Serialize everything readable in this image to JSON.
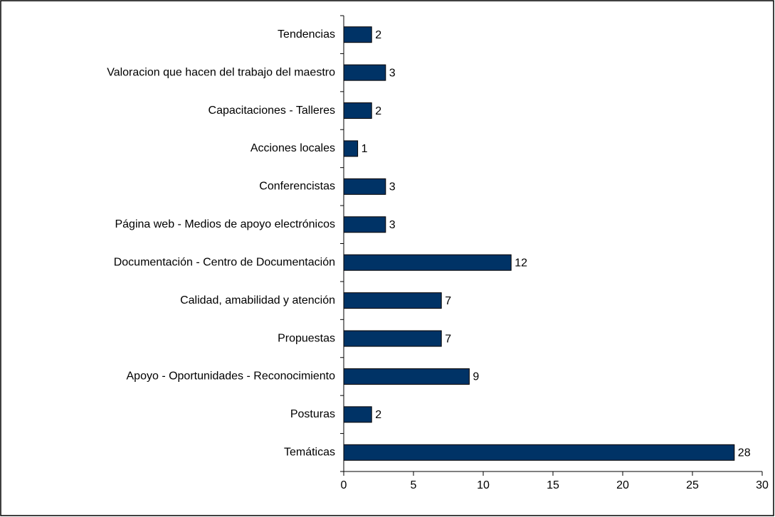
{
  "chart_data": {
    "type": "bar",
    "orientation": "horizontal",
    "categories": [
      "Tendencias",
      "Valoracion que hacen del trabajo del maestro",
      "Capacitaciones - Talleres",
      "Acciones locales",
      "Conferencistas",
      "Página web - Medios de apoyo electrónicos",
      "Documentación - Centro de Documentación",
      "Calidad, amabilidad y atención",
      "Propuestas",
      "Apoyo - Oportunidades - Reconocimiento",
      "Posturas",
      "Temáticas"
    ],
    "values": [
      2,
      3,
      2,
      1,
      3,
      3,
      12,
      7,
      7,
      9,
      2,
      28
    ],
    "color": "#003366",
    "xlim": [
      0,
      30
    ],
    "xticks": [
      0,
      5,
      10,
      15,
      20,
      25,
      30
    ]
  }
}
